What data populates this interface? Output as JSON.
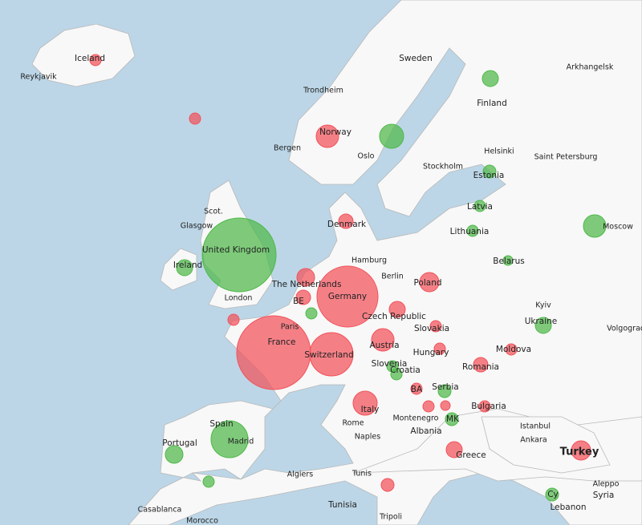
{
  "places": [
    "Iceland",
    "Reykjavik",
    "Sweden",
    "Arkhangelsk",
    "Trondheim",
    "Finland",
    "Norway",
    "Bergen",
    "Oslo",
    "Helsinki",
    "Saint Petersburg",
    "Stockholm",
    "Estonia",
    "Latvia",
    "Scot.",
    "Glasgow",
    "Denmark",
    "Lithuania",
    "Moscow",
    "United Kingdom",
    "Ireland",
    "Hamburg",
    "Belarus",
    "Berlin",
    "The Netherlands",
    "Germany",
    "Poland",
    "London",
    "BE",
    "Kyiv",
    "Czech Republic",
    "Ukraine",
    "Paris",
    "Slovakia",
    "Volgograd",
    "France",
    "Austria",
    "Moldova",
    "Switzerland",
    "Hungary",
    "Slovenia",
    "Croatia",
    "Romania",
    "BA",
    "Serbia",
    "Italy",
    "Bulgaria",
    "Istanbul",
    "Spain",
    "Montenegro",
    "MK",
    "Portugal",
    "Madrid",
    "Rome",
    "Ankara",
    "Turkey",
    "Albania",
    "Naples",
    "Greece",
    "Algiers",
    "Tunis",
    "Aleppo",
    "Syria",
    "Tunisia",
    "Casablanca",
    "Cy",
    "Lebanon",
    "Tripoli",
    "Morocco"
  ]
}
